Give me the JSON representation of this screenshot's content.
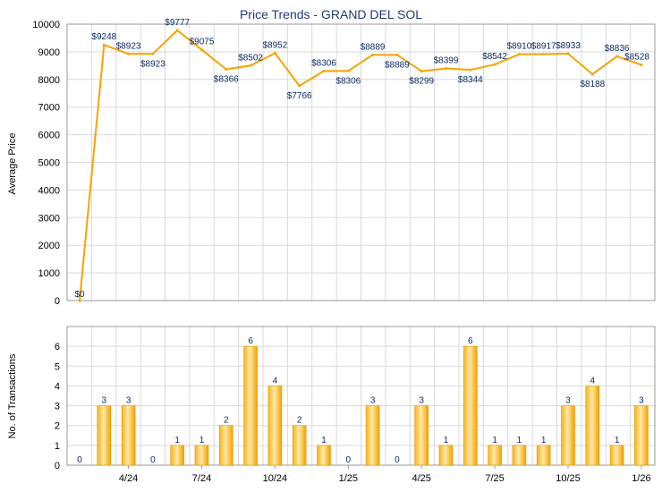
{
  "chart_data": [
    {
      "type": "line",
      "title": "Price Trends - GRAND DEL SOL",
      "ylabel": "Average Price",
      "ylim": [
        0,
        10000
      ],
      "yticks": [
        0,
        1000,
        2000,
        3000,
        4000,
        5000,
        6000,
        7000,
        8000,
        9000,
        10000
      ],
      "grid": true,
      "color": "#f5a400",
      "values": [
        0,
        9248,
        8923,
        8923,
        9777,
        9075,
        8366,
        8502,
        8952,
        7766,
        8306,
        8306,
        8889,
        8889,
        8299,
        8399,
        8344,
        8542,
        8910,
        8917,
        8933,
        8188,
        8836,
        8528
      ],
      "labels": [
        "$0",
        "$9248",
        "$8923",
        "$8923",
        "$9777",
        "$9075",
        "$8366",
        "$8502",
        "$8952",
        "$7766",
        "$8306",
        "$8306",
        "$8889",
        "$8889",
        "$8299",
        "$8399",
        "$8344",
        "$8542",
        "$8910",
        "$8917",
        "$8933",
        "$8188",
        "$8836",
        "$8528"
      ]
    },
    {
      "type": "bar",
      "ylabel": "No. of Transactions",
      "ylim": [
        0,
        7
      ],
      "yticks": [
        0,
        1,
        2,
        3,
        4,
        5,
        6
      ],
      "grid": true,
      "color": "#f5a400",
      "values": [
        0,
        3,
        3,
        0,
        1,
        1,
        2,
        6,
        4,
        2,
        1,
        0,
        3,
        0,
        3,
        1,
        6,
        1,
        1,
        1,
        3,
        4,
        1,
        3
      ],
      "xticks": [
        {
          "label": "4/24",
          "index": 2
        },
        {
          "label": "7/24",
          "index": 5
        },
        {
          "label": "10/24",
          "index": 8
        },
        {
          "label": "1/25",
          "index": 11
        },
        {
          "label": "4/25",
          "index": 14
        },
        {
          "label": "7/25",
          "index": 17
        },
        {
          "label": "10/25",
          "index": 20
        },
        {
          "label": "1/26",
          "index": 23
        }
      ]
    }
  ]
}
